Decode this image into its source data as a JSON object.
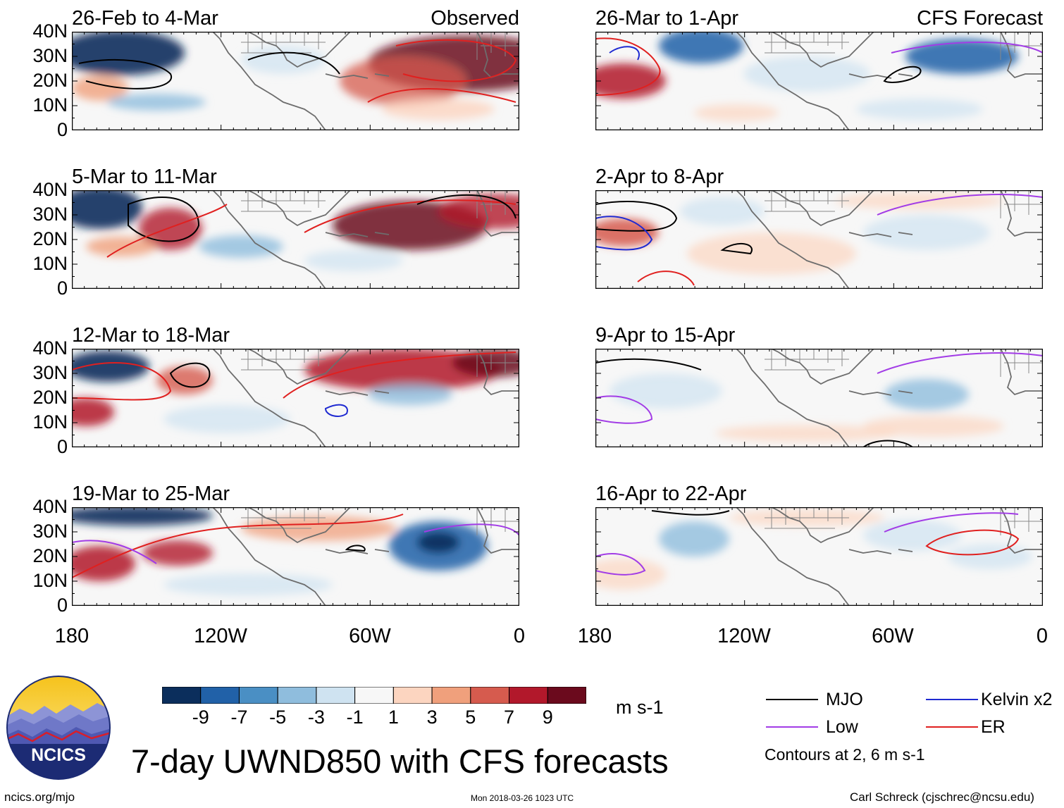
{
  "panels": [
    {
      "period": "26-Feb to 4-Mar",
      "tag": "Observed"
    },
    {
      "period": "5-Mar to 11-Mar",
      "tag": ""
    },
    {
      "period": "12-Mar to 18-Mar",
      "tag": ""
    },
    {
      "period": "19-Mar to 25-Mar",
      "tag": ""
    },
    {
      "period": "26-Mar to 1-Apr",
      "tag": "CFS Forecast"
    },
    {
      "period": "2-Apr to 8-Apr",
      "tag": ""
    },
    {
      "period": "9-Apr to 15-Apr",
      "tag": ""
    },
    {
      "period": "16-Apr to 22-Apr",
      "tag": ""
    }
  ],
  "lat_labels": [
    "40N",
    "30N",
    "20N",
    "10N",
    "0"
  ],
  "lon_labels": [
    "180",
    "120W",
    "60W",
    "0"
  ],
  "colorbar": {
    "ticks": [
      "-9",
      "-7",
      "-5",
      "-3",
      "-1",
      "1",
      "3",
      "5",
      "7",
      "9"
    ],
    "colors": [
      "#0b2e5c",
      "#2161a8",
      "#4a8fc4",
      "#8fbddd",
      "#cfe3f1",
      "#f7f7f7",
      "#fcd5c0",
      "#f0a07c",
      "#d65b4e",
      "#b2182b",
      "#6b0a1d"
    ],
    "units": "m s-1"
  },
  "legend": {
    "items": [
      {
        "label": "MJO",
        "color": "#000000"
      },
      {
        "label": "Kelvin x2",
        "color": "#1f2ad1"
      },
      {
        "label": "Low",
        "color": "#a23ce6"
      },
      {
        "label": "ER",
        "color": "#e0201f"
      }
    ],
    "note": "Contours at 2, 6 m s-1"
  },
  "logo_text": "NCICS",
  "title": "7-day UWND850 with CFS forecasts",
  "footer": {
    "left": "ncics.org/mjo",
    "center": "Mon 2018-03-26 1023 UTC",
    "right": "Carl Schreck (cjschrec@ncsu.edu)"
  }
}
